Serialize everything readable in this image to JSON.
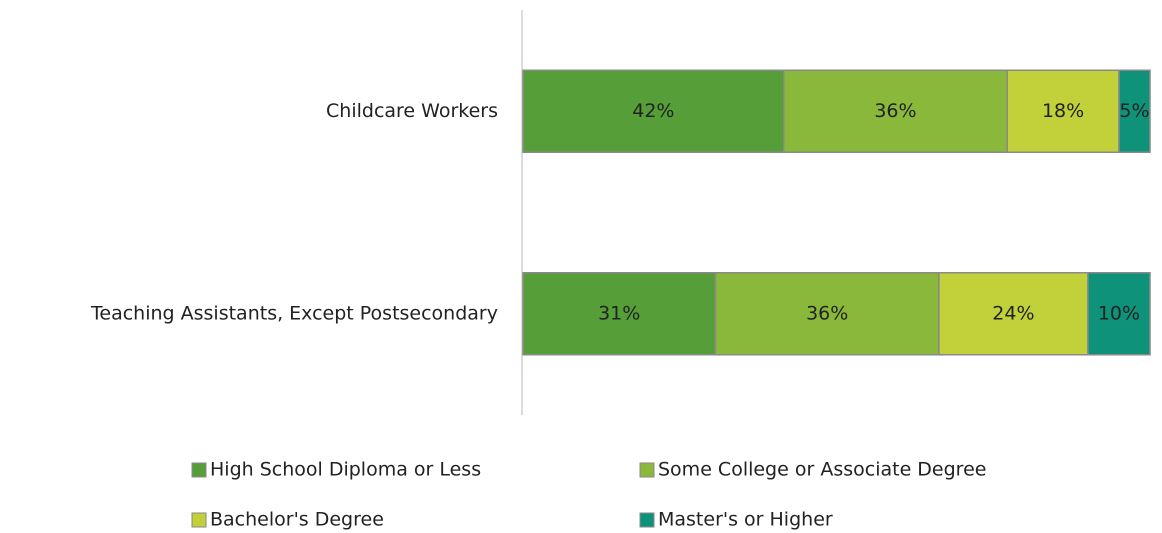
{
  "chart_data": {
    "type": "stacked-bar",
    "orientation": "horizontal",
    "categories": [
      "Childcare Workers",
      "Teaching Assistants, Except Postsecondary"
    ],
    "series": [
      {
        "name": "High School Diploma or Less",
        "color": "#559e38",
        "values": [
          42,
          31
        ],
        "value_labels": [
          "42%",
          "31%"
        ]
      },
      {
        "name": "Some College or Associate Degree",
        "color": "#8ab83a",
        "values": [
          36,
          36
        ],
        "value_labels": [
          "36%",
          "36%"
        ]
      },
      {
        "name": "Bachelor's Degree",
        "color": "#c2d03a",
        "values": [
          18,
          24
        ],
        "value_labels": [
          "18%",
          "24%"
        ]
      },
      {
        "name": "Master's or Higher",
        "color": "#0e927a",
        "values": [
          5,
          10
        ],
        "value_labels": [
          "5%",
          "10%"
        ]
      }
    ],
    "legend": "bottom"
  }
}
